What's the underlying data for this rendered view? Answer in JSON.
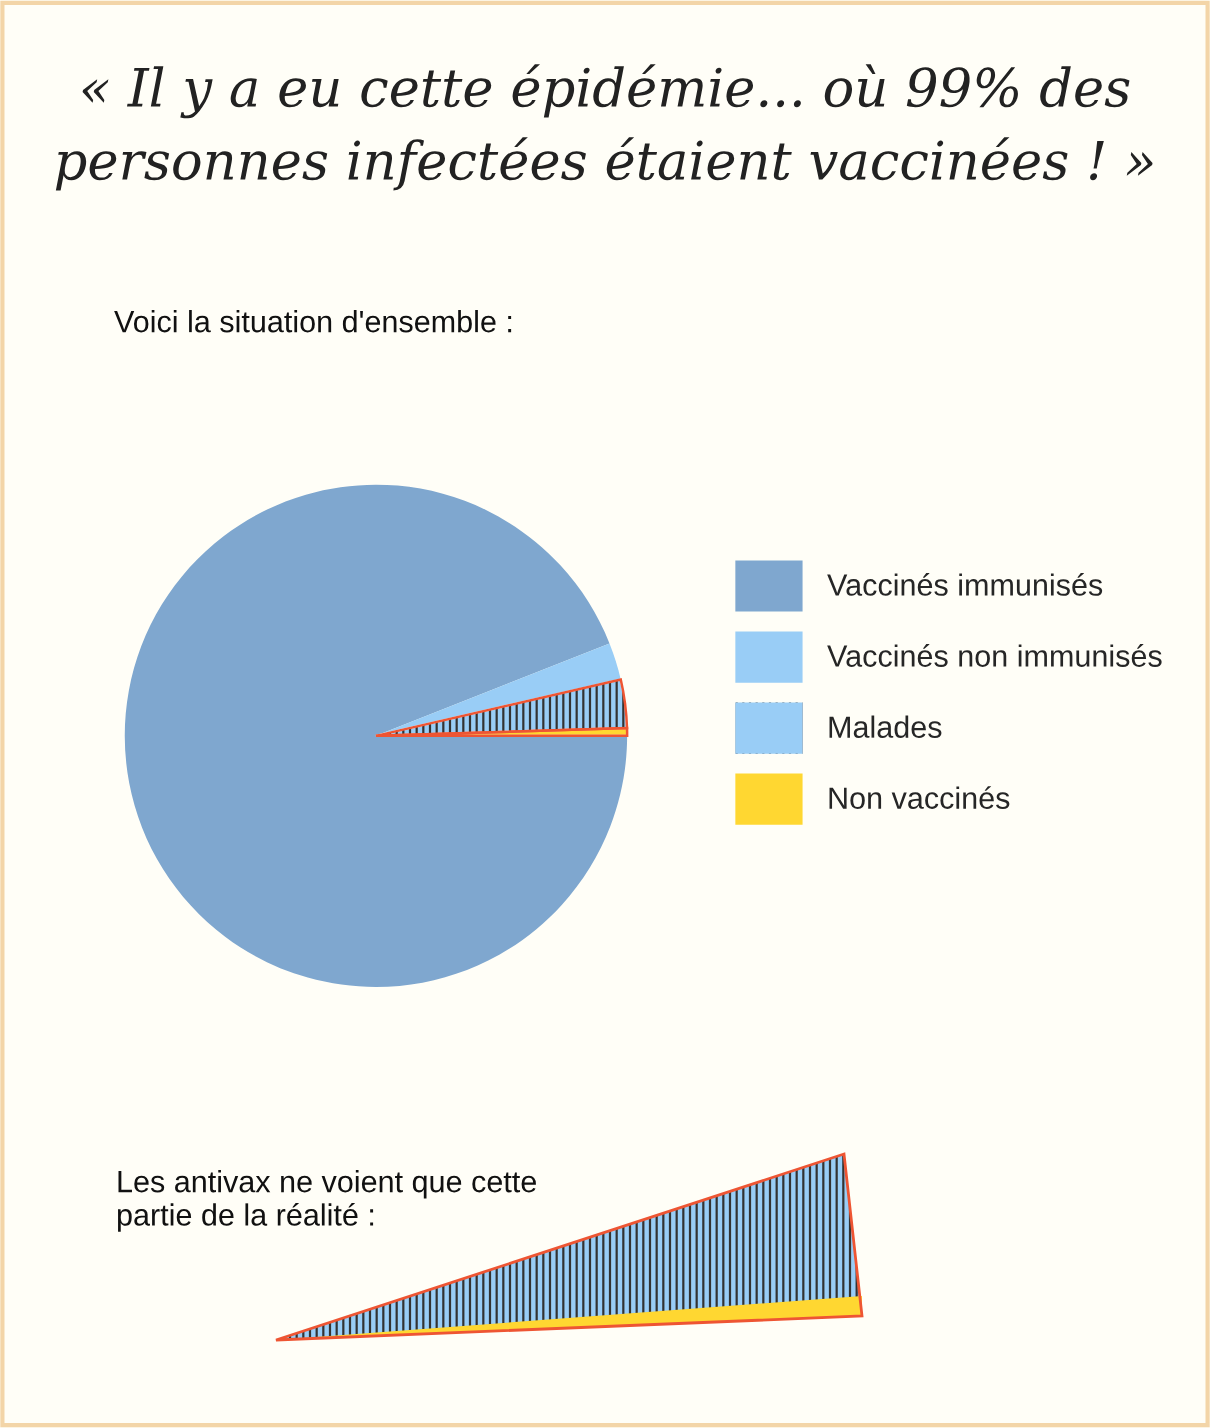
{
  "chart_data": {
    "type": "pie",
    "title": "« Il y a eu cette épidémie... où 99% des\npersonnes infectées étaient vaccinées ! »",
    "categories": [
      "Vaccinés immunisés",
      "Vaccinés non immunisés",
      "Malades",
      "Non vaccinés"
    ],
    "values": [
      94.0,
      2.4,
      3.1,
      0.5
    ],
    "colors": [
      "#7fa7cf",
      "#99cdf6",
      "#99cdf6",
      "#ffd731"
    ],
    "legend": "right",
    "annotations": [
      "Voici la situation d'ensemble :",
      "Les antivax ne voient que cette\npartie de la réalité :"
    ]
  }
}
